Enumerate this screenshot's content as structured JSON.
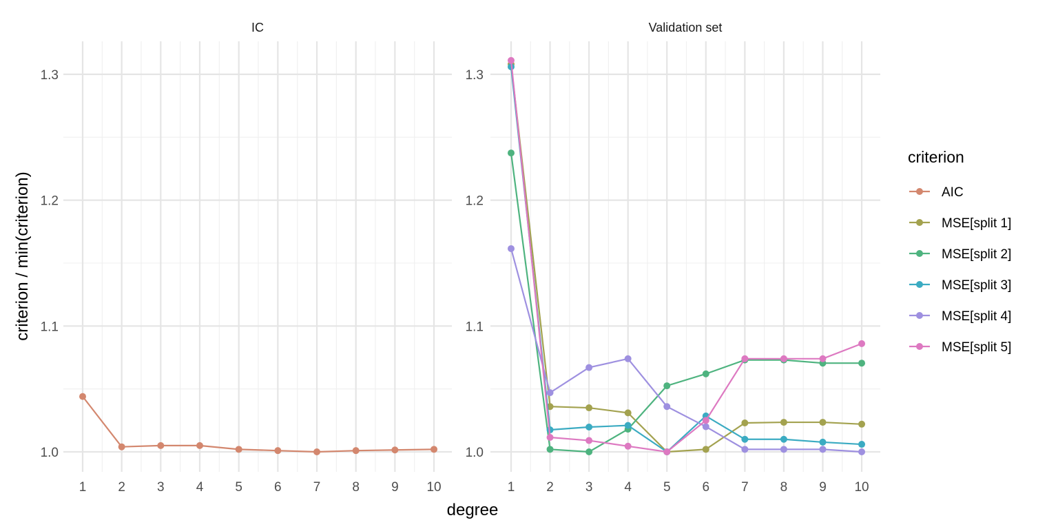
{
  "chart_data": {
    "type": "line",
    "xlabel": "degree",
    "ylabel": "criterion / min(criterion)",
    "ylim": [
      0.984,
      1.326
    ],
    "yticks": [
      "1.0",
      "1.1",
      "1.2",
      "1.3"
    ],
    "x": [
      1,
      2,
      3,
      4,
      5,
      6,
      7,
      8,
      9,
      10
    ],
    "xtick_labels": [
      "1",
      "2",
      "3",
      "4",
      "5",
      "6",
      "7",
      "8",
      "9",
      "10"
    ],
    "grid": true,
    "legend": {
      "title": "criterion",
      "placement": "right"
    },
    "panels": [
      {
        "title": "IC",
        "series": [
          {
            "name": "AIC",
            "color": "#D3876E",
            "values": [
              1.044,
              1.004,
              1.005,
              1.005,
              1.002,
              1.001,
              1.0,
              1.001,
              1.0015,
              1.002
            ]
          }
        ]
      },
      {
        "title": "Validation set",
        "series": [
          {
            "name": "MSE[split 1]",
            "color": "#A3A24F",
            "values": [
              1.308,
              1.036,
              1.035,
              1.031,
              1.0,
              1.002,
              1.023,
              1.0235,
              1.0235,
              1.022
            ]
          },
          {
            "name": "MSE[split 2]",
            "color": "#4EB37F",
            "values": [
              1.2375,
              1.002,
              1.0,
              1.018,
              1.0525,
              1.062,
              1.073,
              1.073,
              1.0705,
              1.0705
            ]
          },
          {
            "name": "MSE[split 3]",
            "color": "#3BABC2",
            "values": [
              1.306,
              1.0175,
              1.0197,
              1.021,
              1.0,
              1.0285,
              1.01,
              1.01,
              1.0077,
              1.006
            ]
          },
          {
            "name": "MSE[split 4]",
            "color": "#9E90E0",
            "values": [
              1.1615,
              1.047,
              1.067,
              1.074,
              1.036,
              1.02,
              1.002,
              1.002,
              1.002,
              1.0
            ]
          },
          {
            "name": "MSE[split 5]",
            "color": "#DD79C1",
            "values": [
              1.311,
              1.0115,
              1.009,
              1.0045,
              1.0,
              1.025,
              1.074,
              1.074,
              1.074,
              1.086
            ]
          }
        ]
      }
    ]
  }
}
